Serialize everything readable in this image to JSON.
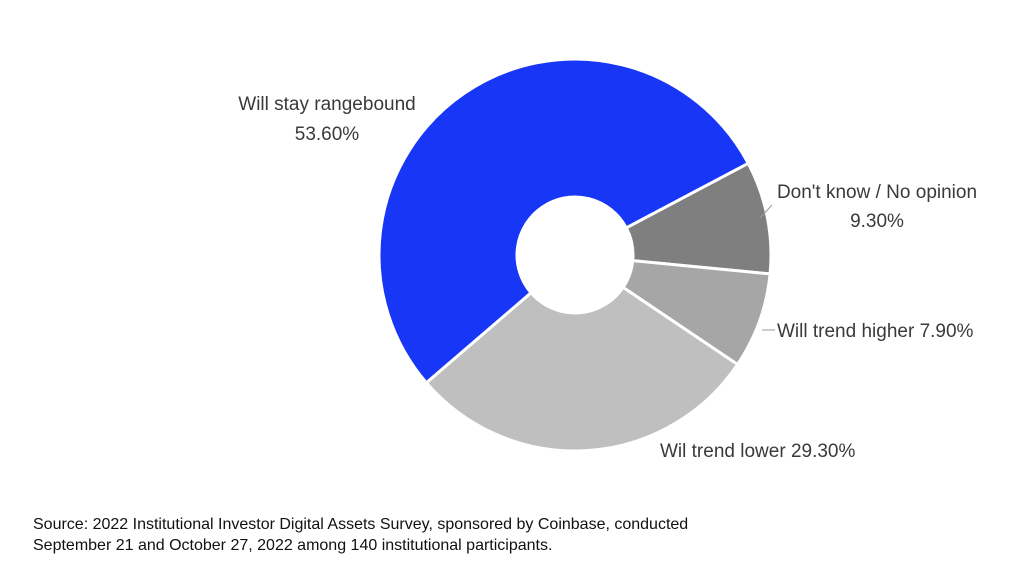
{
  "chart_data": {
    "type": "pie",
    "variant": "donut",
    "slices": [
      {
        "label": "Will stay rangebound",
        "value_text": "53.60%",
        "value": 53.6,
        "color": "#1836f5"
      },
      {
        "label": "Don't know / No opinion",
        "value_text": "9.30%",
        "value": 9.3,
        "color": "#7f7f7f"
      },
      {
        "label": "Will trend higher",
        "value_text": "7.90%",
        "value": 7.9,
        "color": "#a6a6a6"
      },
      {
        "label": "Wil trend lower",
        "value_text": "29.30%",
        "value": 29.3,
        "color": "#bfbfbf"
      }
    ],
    "legend": "none"
  },
  "source": {
    "line1": "Source: 2022 Institutional Investor Digital Assets Survey, sponsored by Coinbase, conducted",
    "line2": "September 21 and October 27, 2022 among 140 institutional participants."
  }
}
